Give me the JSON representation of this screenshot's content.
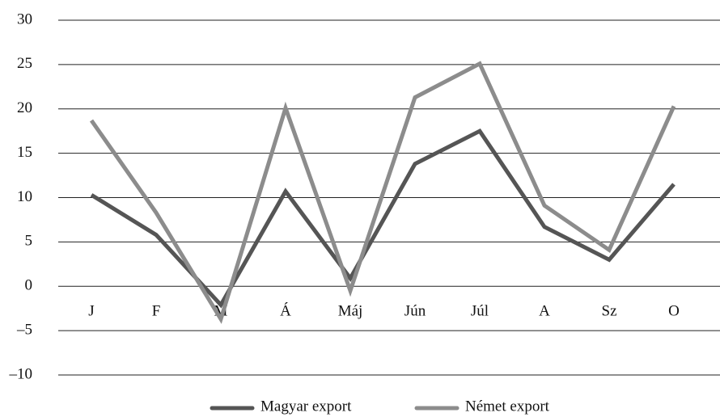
{
  "chart_data": {
    "type": "line",
    "categories": [
      "J",
      "F",
      "M",
      "Á",
      "Máj",
      "Jún",
      "Júl",
      "A",
      "Sz",
      "O"
    ],
    "series": [
      {
        "name": "Magyar export",
        "color": "#555555",
        "values": [
          10.3,
          5.8,
          -2.1,
          10.7,
          0.9,
          13.8,
          17.5,
          6.7,
          3.0,
          11.5
        ]
      },
      {
        "name": "Német export",
        "color": "#8c8c8c",
        "values": [
          18.7,
          8.3,
          -3.7,
          20.1,
          -0.5,
          21.3,
          25.1,
          9.1,
          4.1,
          20.3
        ]
      }
    ],
    "ylim": [
      -10,
      30
    ],
    "yticks": [
      {
        "value": -10,
        "label": "–10"
      },
      {
        "value": -5,
        "label": "–5"
      },
      0,
      5,
      10,
      15,
      20,
      25,
      30
    ],
    "grid": true,
    "legend": "bottom"
  }
}
